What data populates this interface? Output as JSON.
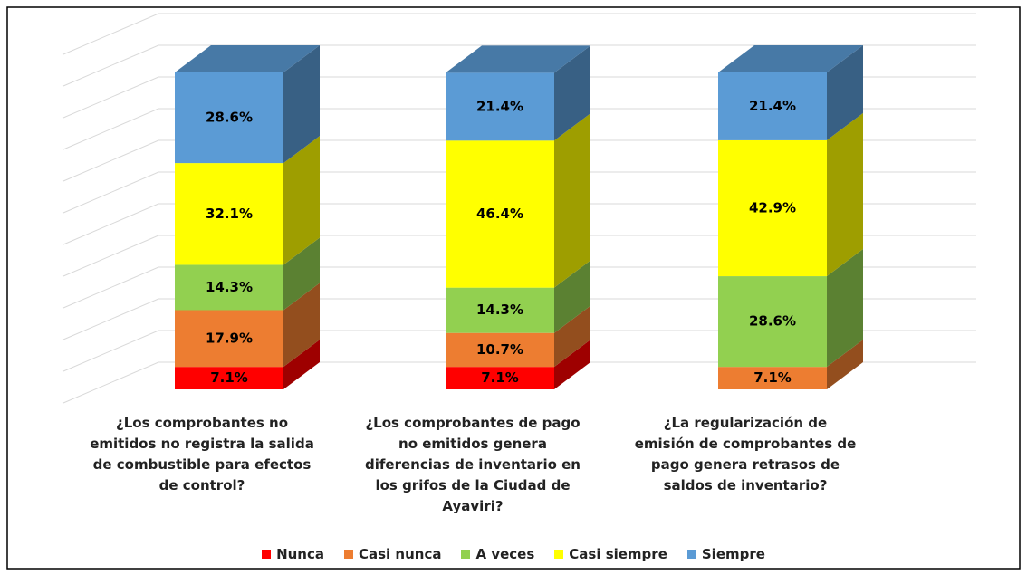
{
  "chart_data": {
    "type": "bar",
    "stacked": true,
    "categories": [
      "¿Los comprobantes no emitidos no registra la salida de combustible para efectos de control?",
      "¿Los comprobantes de pago no emitidos genera diferencias de inventario en los grifos de la Ciudad de Ayaviri?",
      "¿La regularización de emisión de comprobantes de pago genera retrasos de saldos de inventario?"
    ],
    "series": [
      {
        "name": "Nunca",
        "color": "#ff0000",
        "values": [
          7.1,
          7.1,
          null
        ],
        "value_labels": [
          "7.1%",
          "7.1%",
          null
        ]
      },
      {
        "name": "Casi nunca",
        "color": "#ed7d31",
        "values": [
          17.9,
          10.7,
          7.1
        ],
        "value_labels": [
          "17.9%",
          "10.7%",
          "7.1%"
        ]
      },
      {
        "name": "A veces",
        "color": "#92d050",
        "values": [
          14.3,
          14.3,
          28.6
        ],
        "value_labels": [
          "14.3%",
          "14.3%",
          "28.6%"
        ]
      },
      {
        "name": "Casi siempre",
        "color": "#ffff00",
        "values": [
          32.1,
          46.4,
          42.9
        ],
        "value_labels": [
          "32.1%",
          "46.4%",
          "42.9%"
        ]
      },
      {
        "name": "Siempre",
        "color": "#5b9bd5",
        "values": [
          28.6,
          21.4,
          21.4
        ],
        "value_labels": [
          "28.6%",
          "21.4%",
          "21.4%"
        ]
      }
    ],
    "ylim": [
      0,
      110
    ],
    "yticks": [
      0,
      10,
      20,
      30,
      40,
      50,
      60,
      70,
      80,
      90,
      100,
      110
    ],
    "grid": true,
    "legend": "bottom"
  }
}
